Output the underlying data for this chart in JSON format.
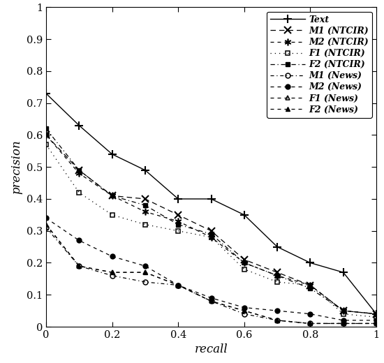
{
  "recall_points": [
    0.0,
    0.1,
    0.2,
    0.3,
    0.4,
    0.5,
    0.6,
    0.7,
    0.8,
    0.9,
    1.0
  ],
  "precision_data": [
    [
      0.73,
      0.63,
      0.54,
      0.49,
      0.4,
      0.4,
      0.35,
      0.25,
      0.2,
      0.17,
      0.04
    ],
    [
      0.6,
      0.49,
      0.41,
      0.4,
      0.35,
      0.3,
      0.21,
      0.17,
      0.13,
      0.05,
      0.04
    ],
    [
      0.6,
      0.48,
      0.41,
      0.36,
      0.33,
      0.28,
      0.2,
      0.16,
      0.13,
      0.05,
      0.04
    ],
    [
      0.57,
      0.42,
      0.35,
      0.32,
      0.3,
      0.28,
      0.18,
      0.14,
      0.13,
      0.04,
      0.03
    ],
    [
      0.62,
      0.49,
      0.41,
      0.38,
      0.32,
      0.29,
      0.2,
      0.16,
      0.12,
      0.05,
      0.04
    ],
    [
      0.31,
      0.19,
      0.16,
      0.14,
      0.13,
      0.08,
      0.04,
      0.02,
      0.01,
      0.01,
      0.01
    ],
    [
      0.34,
      0.27,
      0.22,
      0.19,
      0.13,
      0.09,
      0.06,
      0.05,
      0.04,
      0.02,
      0.02
    ],
    [
      0.32,
      0.19,
      0.17,
      0.17,
      0.13,
      0.08,
      0.05,
      0.02,
      0.01,
      0.01,
      0.01
    ],
    [
      0.32,
      0.19,
      0.17,
      0.17,
      0.13,
      0.08,
      0.05,
      0.02,
      0.01,
      0.01,
      0.01
    ]
  ],
  "labels": [
    "Text",
    "M1 (NTCIR)",
    "M2 (NTCIR)",
    "F1 (NTCIR)",
    "F2 (NTCIR)",
    "M1 (News)",
    "M2 (News)",
    "F1 (News)",
    "F2 (News)"
  ],
  "xlabel": "recall",
  "ylabel": "precision",
  "xlim": [
    0.0,
    1.0
  ],
  "ylim": [
    0.0,
    1.0
  ],
  "xticks": [
    0.0,
    0.2,
    0.4,
    0.6,
    0.8,
    1.0
  ],
  "yticks": [
    0.0,
    0.1,
    0.2,
    0.3,
    0.4,
    0.5,
    0.6,
    0.7,
    0.8,
    0.9,
    1.0
  ]
}
